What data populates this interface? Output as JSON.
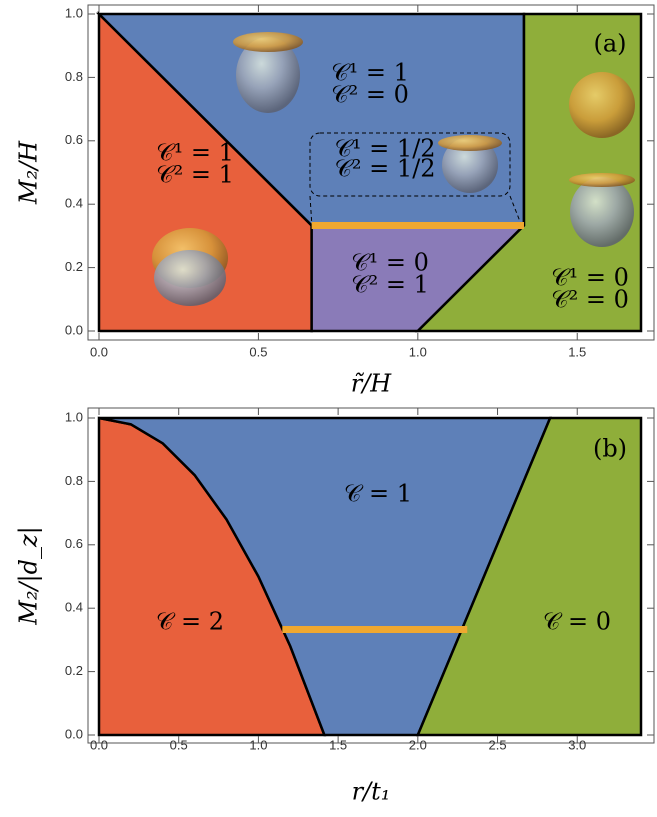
{
  "chart_data": [
    {
      "type": "phase",
      "panel_label": "(a)",
      "x_label": "r̃/H",
      "y_label": "M₂/H",
      "xlim": [
        0,
        1.7
      ],
      "ylim": [
        0,
        1
      ],
      "xticks": [
        {
          "value": 0,
          "label": "0.0"
        },
        0.5,
        {
          "value": 1,
          "label": "1.0"
        },
        1.5
      ],
      "yticks": [
        {
          "value": 0,
          "label": "0.0"
        },
        0.2,
        0.4,
        0.6,
        0.8,
        {
          "value": 1,
          "label": "1.0"
        }
      ],
      "regions": [
        {
          "color": "#e8603c",
          "labels": [
            "𝒞¹ = 1",
            "𝒞² = 1"
          ],
          "x": [
            0,
            0,
            0.667,
            0.667
          ],
          "y": [
            0,
            1,
            0.333,
            0
          ]
        },
        {
          "color": "#5e80b8",
          "labels": [
            "𝒞¹ = 1",
            "𝒞² = 0"
          ],
          "x": [
            0,
            1.333,
            1.333,
            0.667
          ],
          "y": [
            1,
            1,
            0.333,
            0.333
          ]
        },
        {
          "color": "#8a7bb8",
          "labels": [
            "𝒞¹ = 0",
            "𝒞² = 1"
          ],
          "x": [
            0.667,
            0.667,
            1.333,
            1
          ],
          "y": [
            0,
            0.333,
            0.333,
            0
          ]
        },
        {
          "color": "#8fae3a",
          "labels": [
            "𝒞¹ = 0",
            "𝒞² = 0"
          ],
          "x": [
            1,
            1.333,
            1.333,
            1.7,
            1.7
          ],
          "y": [
            0,
            0.333,
            1,
            1,
            0
          ]
        }
      ],
      "line": {
        "color": "#f0a830",
        "x": [
          0.667,
          1.333
        ],
        "y": [
          0.333,
          0.333
        ]
      },
      "annotation": [
        "𝒞¹ = 1/2",
        "𝒞² = 1/2"
      ]
    },
    {
      "type": "phase",
      "panel_label": "(b)",
      "x_label": "r/t₁",
      "y_label": "M₂/|d_z|",
      "xlim": [
        0,
        3.4
      ],
      "ylim": [
        0,
        1
      ],
      "xticks": [
        {
          "value": 0,
          "label": "0.0"
        },
        0.5,
        {
          "value": 1,
          "label": "1.0"
        },
        1.5,
        {
          "value": 2,
          "label": "2.0"
        },
        2.5,
        {
          "value": 3,
          "label": "3.0"
        }
      ],
      "yticks": [
        {
          "value": 0,
          "label": "0.0"
        },
        0.2,
        0.4,
        0.6,
        0.8,
        {
          "value": 1,
          "label": "1.0"
        }
      ],
      "regions": [
        {
          "color": "#e8603c",
          "labels": [
            "𝒞 = 2"
          ],
          "x": [
            0,
            0,
            0.2,
            0.4,
            0.6,
            0.8,
            1.0,
            1.2,
            1.414
          ],
          "y": [
            0,
            1,
            0.98,
            0.92,
            0.82,
            0.68,
            0.5,
            0.28,
            0
          ]
        },
        {
          "color": "#5e80b8",
          "labels": [
            "𝒞 = 1"
          ],
          "x": [
            0,
            0.2,
            0.4,
            0.6,
            0.8,
            1.0,
            1.2,
            1.414,
            2,
            2.83
          ],
          "y": [
            1,
            0.98,
            0.92,
            0.82,
            0.68,
            0.5,
            0.28,
            0,
            0,
            1
          ]
        },
        {
          "color": "#8fae3a",
          "labels": [
            "𝒞 = 0"
          ],
          "x": [
            2,
            2.83,
            3.4,
            3.4
          ],
          "y": [
            0,
            1,
            1,
            0
          ]
        }
      ],
      "line": {
        "color": "#f0a830",
        "x": [
          1.15,
          2.31
        ],
        "y": [
          0.333,
          0.333
        ]
      }
    }
  ]
}
